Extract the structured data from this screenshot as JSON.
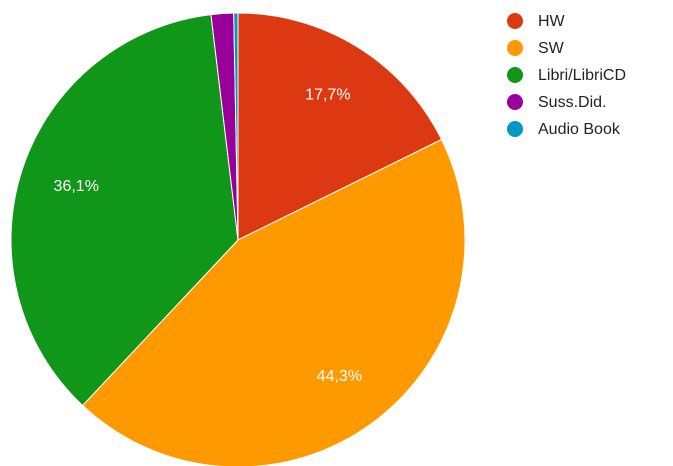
{
  "chart_data": {
    "type": "pie",
    "categories": [
      "HW",
      "SW",
      "Libri/LibriCD",
      "Suss.Did.",
      "Audio Book"
    ],
    "values": [
      17.7,
      44.3,
      36.1,
      1.6,
      0.3
    ],
    "value_labels": [
      "17,7%",
      "44,3%",
      "36,1%",
      null,
      null
    ],
    "colors": [
      "#dc3912",
      "#ff9900",
      "#109618",
      "#990099",
      "#0099c6"
    ],
    "legend": "right"
  }
}
